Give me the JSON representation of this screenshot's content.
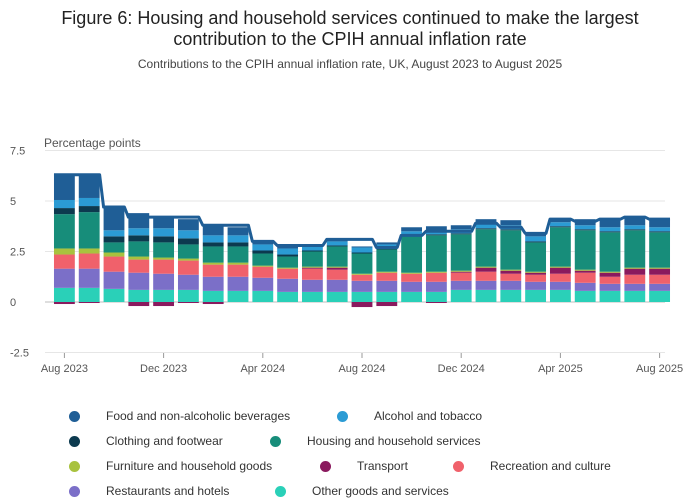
{
  "title_line1": "Figure 6: Housing and household services continued to make the largest",
  "title_line2": "contribution to the CPIH annual inflation rate",
  "subtitle": "Contributions to the CPIH annual inflation rate, UK, August 2023 to August 2025",
  "chart_data": {
    "type": "bar",
    "stacked": true,
    "ylabel": "Percentage points",
    "ylim": [
      -2.5,
      7.5
    ],
    "yticks": [
      -2.5,
      0,
      2.5,
      5,
      7.5
    ],
    "ytick_labels": [
      "-2.5",
      "0",
      "2.5",
      "5",
      "7.5"
    ],
    "grid": true,
    "legend_position": "bottom",
    "x_tick_labels": [
      {
        "index": 0,
        "label": "Aug 2023"
      },
      {
        "index": 4,
        "label": "Dec 2023"
      },
      {
        "index": 8,
        "label": "Apr 2024"
      },
      {
        "index": 12,
        "label": "Aug 2024"
      },
      {
        "index": 16,
        "label": "Dec 2024"
      },
      {
        "index": 20,
        "label": "Apr 2025"
      },
      {
        "index": 24,
        "label": "Aug 2025"
      }
    ],
    "categories": [
      "Aug 2023",
      "Sep 2023",
      "Oct 2023",
      "Nov 2023",
      "Dec 2023",
      "Jan 2024",
      "Feb 2024",
      "Mar 2024",
      "Apr 2024",
      "May 2024",
      "Jun 2024",
      "Jul 2024",
      "Aug 2024",
      "Sep 2024",
      "Oct 2024",
      "Nov 2024",
      "Dec 2024",
      "Jan 2025",
      "Feb 2025",
      "Mar 2025",
      "Apr 2025",
      "May 2025",
      "Jun 2025",
      "Jul 2025",
      "Aug 2025"
    ],
    "series": [
      {
        "name": "Other goods and services",
        "color": "#2ad0b8",
        "values": [
          0.7,
          0.7,
          0.65,
          0.6,
          0.6,
          0.6,
          0.55,
          0.55,
          0.55,
          0.5,
          0.5,
          0.5,
          0.5,
          0.5,
          0.5,
          0.5,
          0.6,
          0.6,
          0.6,
          0.6,
          0.6,
          0.55,
          0.55,
          0.55,
          0.55
        ]
      },
      {
        "name": "Restaurants and hotels",
        "color": "#7b6fc8",
        "values": [
          0.95,
          0.95,
          0.85,
          0.85,
          0.8,
          0.75,
          0.7,
          0.7,
          0.65,
          0.65,
          0.6,
          0.6,
          0.55,
          0.55,
          0.5,
          0.5,
          0.45,
          0.45,
          0.45,
          0.4,
          0.4,
          0.4,
          0.35,
          0.35,
          0.35
        ]
      },
      {
        "name": "Recreation and culture",
        "color": "#f0616b",
        "values": [
          0.7,
          0.75,
          0.75,
          0.65,
          0.7,
          0.7,
          0.6,
          0.6,
          0.55,
          0.5,
          0.55,
          0.5,
          0.3,
          0.4,
          0.4,
          0.45,
          0.4,
          0.45,
          0.35,
          0.35,
          0.4,
          0.5,
          0.35,
          0.45,
          0.45
        ]
      },
      {
        "name": "Transport",
        "color": "#8a1a5e",
        "values": [
          -0.1,
          -0.05,
          0,
          -0.2,
          -0.2,
          -0.05,
          -0.1,
          0,
          0,
          0,
          0.05,
          0.1,
          -0.25,
          -0.2,
          0,
          -0.05,
          0.05,
          0.2,
          0.15,
          0.1,
          0.3,
          0.1,
          0.2,
          0.3,
          0.3
        ]
      },
      {
        "name": "Furniture and household goods",
        "color": "#a8c23e",
        "values": [
          0.3,
          0.25,
          0.2,
          0.15,
          0.1,
          0.1,
          0.1,
          0.1,
          0.05,
          0.05,
          0.05,
          0.05,
          0.05,
          0.05,
          0.05,
          0.05,
          0.05,
          0.05,
          0.05,
          0.05,
          0.05,
          0.05,
          0.05,
          0.05,
          0.05
        ]
      },
      {
        "name": "Housing and household services",
        "color": "#178d7a",
        "values": [
          1.7,
          1.8,
          0.5,
          0.75,
          0.75,
          0.7,
          0.8,
          0.8,
          0.6,
          0.55,
          0.75,
          1.0,
          1.0,
          1.1,
          1.8,
          1.8,
          1.8,
          1.85,
          1.95,
          1.45,
          1.95,
          1.95,
          1.95,
          1.85,
          1.75
        ]
      },
      {
        "name": "Clothing and footwear",
        "color": "#0c3a4f",
        "values": [
          0.3,
          0.3,
          0.3,
          0.3,
          0.3,
          0.3,
          0.2,
          0.2,
          0.15,
          0.1,
          0.05,
          0.05,
          0.05,
          0.05,
          0.05,
          0.05,
          0.05,
          0.05,
          0.05,
          0.05,
          0.05,
          0.05,
          0.05,
          0.05,
          0.05
        ]
      },
      {
        "name": "Alcohol and tobacco",
        "color": "#2b9bd4",
        "values": [
          0.4,
          0.4,
          0.3,
          0.35,
          0.4,
          0.4,
          0.35,
          0.35,
          0.3,
          0.3,
          0.25,
          0.2,
          0.25,
          0.2,
          0.2,
          0.2,
          0.2,
          0.2,
          0.2,
          0.25,
          0.2,
          0.2,
          0.2,
          0.2,
          0.2
        ]
      },
      {
        "name": "Food and non-alcoholic beverages",
        "color": "#1f5e96",
        "values": [
          1.3,
          1.2,
          1.2,
          0.75,
          0.6,
          0.55,
          0.5,
          0.4,
          0.15,
          0.15,
          0.05,
          0.05,
          0.05,
          0.1,
          0.2,
          0.2,
          0.2,
          0.25,
          0.25,
          0.2,
          0.2,
          0.3,
          0.4,
          0.4,
          0.4
        ]
      }
    ],
    "line": {
      "name": "CPIH annual rate",
      "color": "#1f5e96",
      "values": [
        6.3,
        6.3,
        4.7,
        4.2,
        4.2,
        4.2,
        3.8,
        3.8,
        3.0,
        2.8,
        2.8,
        3.1,
        3.1,
        2.7,
        3.3,
        3.5,
        3.5,
        3.9,
        3.7,
        3.4,
        4.1,
        4.0,
        4.1,
        4.2,
        4.1
      ]
    }
  },
  "legend": [
    {
      "label": "Food and non-alcoholic beverages",
      "color": "#1f5e96"
    },
    {
      "label": "Alcohol and tobacco",
      "color": "#2b9bd4"
    },
    {
      "label": "Clothing and footwear",
      "color": "#0c3a4f"
    },
    {
      "label": "Housing and household services",
      "color": "#178d7a"
    },
    {
      "label": "Furniture and household goods",
      "color": "#a8c23e"
    },
    {
      "label": "Transport",
      "color": "#8a1a5e"
    },
    {
      "label": "Recreation and culture",
      "color": "#f0616b"
    },
    {
      "label": "Restaurants and hotels",
      "color": "#7b6fc8"
    },
    {
      "label": "Other goods and services",
      "color": "#2ad0b8"
    }
  ]
}
